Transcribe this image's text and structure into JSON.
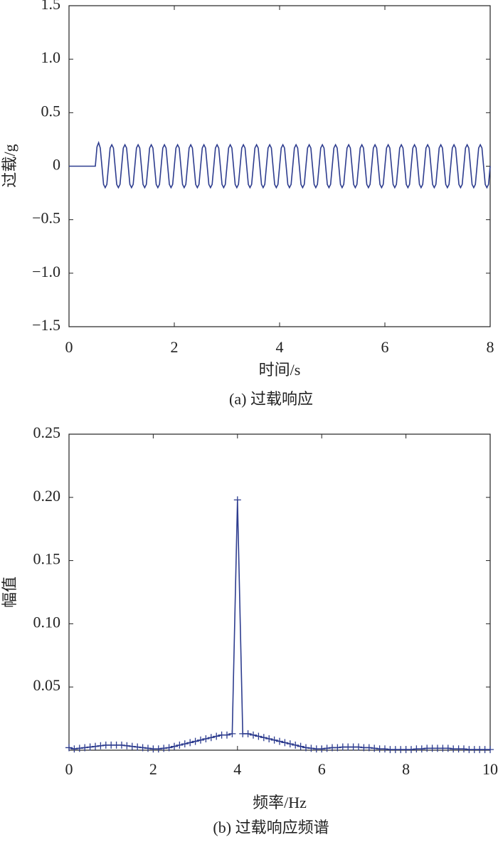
{
  "chart_data": [
    {
      "type": "line",
      "ylabel": "过载/g",
      "xlabel": "时间/s",
      "caption": "(a) 过载响应",
      "color": "#2e3d8f",
      "xlim": [
        0,
        8
      ],
      "ylim": [
        -1.5,
        1.5
      ],
      "xticks": [
        0,
        2,
        4,
        6,
        8
      ],
      "yticks": [
        1.5,
        {
          "value": 1,
          "label": "1.0"
        },
        0.5,
        0,
        {
          "value": -0.5,
          "label": "−0.5"
        },
        {
          "value": -1,
          "label": "−1.0"
        },
        {
          "value": -1.5,
          "label": "−1.5"
        }
      ],
      "x": [
        0,
        0.5,
        0.53125,
        0.5625,
        0.59375,
        0.625,
        0.65625,
        0.6875,
        0.71875,
        0.75,
        0.78125,
        0.8125,
        0.84375,
        0.875,
        0.90625,
        0.9375,
        0.96875,
        1,
        1.03125,
        1.0625,
        1.09375,
        1.125,
        1.15625,
        1.1875,
        1.21875,
        1.25,
        1.28125,
        1.3125,
        1.34375,
        1.375,
        1.40625,
        1.4375,
        1.46875,
        1.5,
        1.53125,
        1.5625,
        1.59375,
        1.625,
        1.65625,
        1.6875,
        1.71875,
        1.75,
        1.78125,
        1.8125,
        1.84375,
        1.875,
        1.90625,
        1.9375,
        1.96875,
        2,
        2.03125,
        2.0625,
        2.09375,
        2.125,
        2.15625,
        2.1875,
        2.21875,
        2.25,
        2.28125,
        2.3125,
        2.34375,
        2.375,
        2.40625,
        2.4375,
        2.46875,
        2.5,
        2.53125,
        2.5625,
        2.59375,
        2.625,
        2.65625,
        2.6875,
        2.71875,
        2.75,
        2.78125,
        2.8125,
        2.84375,
        2.875,
        2.90625,
        2.9375,
        2.96875,
        3,
        3.03125,
        3.0625,
        3.09375,
        3.125,
        3.15625,
        3.1875,
        3.21875,
        3.25,
        3.28125,
        3.3125,
        3.34375,
        3.375,
        3.40625,
        3.4375,
        3.46875,
        3.5,
        3.53125,
        3.5625,
        3.59375,
        3.625,
        3.65625,
        3.6875,
        3.71875,
        3.75,
        3.78125,
        3.8125,
        3.84375,
        3.875,
        3.90625,
        3.9375,
        3.96875,
        4,
        4.03125,
        4.0625,
        4.09375,
        4.125,
        4.15625,
        4.1875,
        4.21875,
        4.25,
        4.28125,
        4.3125,
        4.34375,
        4.375,
        4.40625,
        4.4375,
        4.46875,
        4.5,
        4.53125,
        4.5625,
        4.59375,
        4.625,
        4.65625,
        4.6875,
        4.71875,
        4.75,
        4.78125,
        4.8125,
        4.84375,
        4.875,
        4.90625,
        4.9375,
        4.96875,
        5,
        5.03125,
        5.0625,
        5.09375,
        5.125,
        5.15625,
        5.1875,
        5.21875,
        5.25,
        5.28125,
        5.3125,
        5.34375,
        5.375,
        5.40625,
        5.4375,
        5.46875,
        5.5,
        5.53125,
        5.5625,
        5.59375,
        5.625,
        5.65625,
        5.6875,
        5.71875,
        5.75,
        5.78125,
        5.8125,
        5.84375,
        5.875,
        5.90625,
        5.9375,
        5.96875,
        6,
        6.03125,
        6.0625,
        6.09375,
        6.125,
        6.15625,
        6.1875,
        6.21875,
        6.25,
        6.28125,
        6.3125,
        6.34375,
        6.375,
        6.40625,
        6.4375,
        6.46875,
        6.5,
        6.53125,
        6.5625,
        6.59375,
        6.625,
        6.65625,
        6.6875,
        6.71875,
        6.75,
        6.78125,
        6.8125,
        6.84375,
        6.875,
        6.90625,
        6.9375,
        6.96875,
        7,
        7.03125,
        7.0625,
        7.09375,
        7.125,
        7.15625,
        7.1875,
        7.21875,
        7.25,
        7.28125,
        7.3125,
        7.34375,
        7.375,
        7.40625,
        7.4375,
        7.46875,
        7.5,
        7.53125,
        7.5625,
        7.59375,
        7.625,
        7.65625,
        7.6875,
        7.71875,
        7.75,
        7.78125,
        7.8125,
        7.84375,
        7.875,
        7.90625,
        7.9375,
        7.96875,
        8
      ],
      "values": [
        0,
        0,
        0.18,
        0.22,
        0.17,
        0,
        -0.17,
        -0.2,
        -0.17,
        0,
        0.17,
        0.2,
        0.17,
        0,
        -0.17,
        -0.2,
        -0.17,
        0,
        0.17,
        0.2,
        0.17,
        0,
        -0.17,
        -0.2,
        -0.17,
        0,
        0.17,
        0.2,
        0.17,
        0,
        -0.17,
        -0.2,
        -0.17,
        0,
        0.17,
        0.2,
        0.17,
        0,
        -0.17,
        -0.2,
        -0.17,
        0,
        0.17,
        0.2,
        0.17,
        0,
        -0.17,
        -0.2,
        -0.17,
        0,
        0.17,
        0.2,
        0.17,
        0,
        -0.17,
        -0.2,
        -0.17,
        0,
        0.17,
        0.2,
        0.17,
        0,
        -0.17,
        -0.2,
        -0.17,
        0,
        0.17,
        0.2,
        0.17,
        0,
        -0.17,
        -0.2,
        -0.17,
        0,
        0.17,
        0.2,
        0.17,
        0,
        -0.17,
        -0.2,
        -0.17,
        0,
        0.17,
        0.2,
        0.17,
        0,
        -0.17,
        -0.2,
        -0.17,
        0,
        0.17,
        0.2,
        0.17,
        0,
        -0.17,
        -0.2,
        -0.17,
        0,
        0.17,
        0.2,
        0.17,
        0,
        -0.17,
        -0.2,
        -0.17,
        0,
        0.17,
        0.2,
        0.17,
        0,
        -0.17,
        -0.2,
        -0.17,
        0,
        0.17,
        0.2,
        0.17,
        0,
        -0.17,
        -0.2,
        -0.17,
        0,
        0.17,
        0.2,
        0.17,
        0,
        -0.17,
        -0.2,
        -0.17,
        0,
        0.17,
        0.2,
        0.17,
        0,
        -0.17,
        -0.2,
        -0.17,
        0,
        0.17,
        0.2,
        0.17,
        0,
        -0.17,
        -0.2,
        -0.17,
        0,
        0.17,
        0.2,
        0.17,
        0,
        -0.17,
        -0.2,
        -0.17,
        0,
        0.17,
        0.2,
        0.17,
        0,
        -0.17,
        -0.2,
        -0.17,
        0,
        0.17,
        0.2,
        0.17,
        0,
        -0.17,
        -0.2,
        -0.17,
        0,
        0.17,
        0.2,
        0.17,
        0,
        -0.17,
        -0.2,
        -0.17,
        0,
        0.17,
        0.2,
        0.17,
        0,
        -0.17,
        -0.2,
        -0.17,
        0,
        0.17,
        0.2,
        0.17,
        0,
        -0.17,
        -0.2,
        -0.17,
        0,
        0.17,
        0.2,
        0.17,
        0,
        -0.17,
        -0.2,
        -0.17,
        0,
        0.17,
        0.2,
        0.17,
        0,
        -0.17,
        -0.2,
        -0.17,
        0,
        0.17,
        0.2,
        0.17,
        0,
        -0.17,
        -0.2,
        -0.17,
        0,
        0.17,
        0.2,
        0.17,
        0,
        -0.17,
        -0.2,
        -0.17,
        0,
        0.17,
        0.2,
        0.17,
        0,
        -0.17,
        -0.2,
        -0.17,
        0,
        0.17,
        0.2,
        0.17,
        0,
        -0.17,
        -0.2,
        -0.17,
        0
      ]
    },
    {
      "type": "line",
      "ylabel": "幅值",
      "xlabel": "频率/Hz",
      "caption": "(b) 过载响应频谱",
      "color": "#2e3d8f",
      "marker": "+",
      "xlim": [
        0,
        10
      ],
      "ylim": [
        0,
        0.25
      ],
      "xticks": [
        0,
        2,
        4,
        6,
        8,
        10
      ],
      "yticks": [
        {
          "value": 0.25,
          "label": "0.25"
        },
        {
          "value": 0.2,
          "label": "0.20"
        },
        0.15,
        {
          "value": 0.1,
          "label": "0.10"
        },
        0.05
      ],
      "x": [
        0,
        0.125,
        0.25,
        0.375,
        0.5,
        0.625,
        0.75,
        0.875,
        1,
        1.125,
        1.25,
        1.375,
        1.5,
        1.625,
        1.75,
        1.875,
        2,
        2.125,
        2.25,
        2.375,
        2.5,
        2.625,
        2.75,
        2.875,
        3,
        3.125,
        3.25,
        3.375,
        3.5,
        3.625,
        3.75,
        3.875,
        4,
        4.125,
        4.25,
        4.375,
        4.5,
        4.625,
        4.75,
        4.875,
        5,
        5.125,
        5.25,
        5.375,
        5.5,
        5.625,
        5.75,
        5.875,
        6,
        6.125,
        6.25,
        6.375,
        6.5,
        6.625,
        6.75,
        6.875,
        7,
        7.125,
        7.25,
        7.375,
        7.5,
        7.625,
        7.75,
        7.875,
        8,
        8.125,
        8.25,
        8.375,
        8.5,
        8.625,
        8.75,
        8.875,
        9,
        9.125,
        9.25,
        9.375,
        9.5,
        9.625,
        9.75,
        9.875,
        10
      ],
      "values": [
        0.002,
        0.001,
        0.0015,
        0.002,
        0.0025,
        0.003,
        0.0035,
        0.004,
        0.004,
        0.004,
        0.004,
        0.0035,
        0.003,
        0.0025,
        0.002,
        0.0015,
        0.001,
        0.001,
        0.0015,
        0.002,
        0.003,
        0.004,
        0.005,
        0.006,
        0.007,
        0.008,
        0.009,
        0.01,
        0.011,
        0.012,
        0.012,
        0.013,
        0.198,
        0.013,
        0.013,
        0.012,
        0.011,
        0.01,
        0.009,
        0.008,
        0.007,
        0.006,
        0.005,
        0.004,
        0.003,
        0.002,
        0.0015,
        0.001,
        0.001,
        0.0015,
        0.002,
        0.002,
        0.0025,
        0.0025,
        0.0025,
        0.0025,
        0.002,
        0.002,
        0.0015,
        0.001,
        0.001,
        0.0005,
        0.0005,
        0.0005,
        0.0005,
        0.0005,
        0.001,
        0.001,
        0.0015,
        0.0015,
        0.0015,
        0.0015,
        0.0015,
        0.001,
        0.001,
        0.001,
        0.0005,
        0.0005,
        0.0005,
        0.0005,
        0.0005
      ]
    }
  ]
}
